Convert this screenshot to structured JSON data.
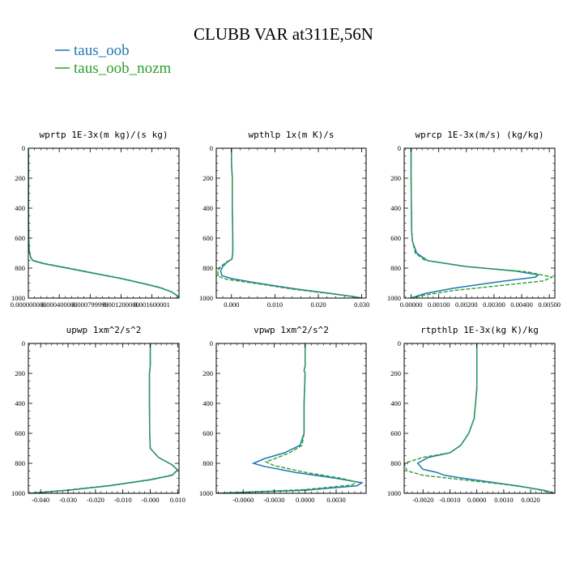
{
  "figure": {
    "title": "CLUBB VAR at311E,56N",
    "legend": [
      {
        "name": "taus_oob",
        "color": "#1f77b4",
        "dash": "solid"
      },
      {
        "name": "taus_oob_nozm",
        "color": "#2ca02c",
        "dash": "dashed"
      }
    ]
  },
  "chart_data": [
    {
      "type": "line",
      "title": "wprtp  1E-3x(m kg)/(s kg)",
      "x_ticks": [
        "0.000000000",
        "0.000400000",
        "0.000799999",
        "0.001200000",
        "0.001600001"
      ],
      "x_tick_values": [
        0,
        0.0004,
        0.0008,
        0.0012,
        0.0016
      ],
      "xlim": [
        0,
        0.00195
      ],
      "y_ticks": [
        "0",
        "200",
        "400",
        "600",
        "800",
        "1000"
      ],
      "ylim": [
        1000,
        0
      ],
      "series": [
        {
          "name": "taus_oob",
          "points": [
            [
              2e-06,
              0
            ],
            [
              2e-06,
              200
            ],
            [
              2e-06,
              400
            ],
            [
              3e-06,
              500
            ],
            [
              5e-06,
              600
            ],
            [
              1e-05,
              680
            ],
            [
              3e-05,
              730
            ],
            [
              6e-05,
              750
            ],
            [
              0.0002,
              770
            ],
            [
              0.0005,
              800
            ],
            [
              0.0009,
              840
            ],
            [
              0.0012,
              870
            ],
            [
              0.0015,
              905
            ],
            [
              0.0017,
              930
            ],
            [
              0.00185,
              958
            ],
            [
              0.00193,
              985
            ],
            [
              0.00195,
              1000
            ]
          ]
        },
        {
          "name": "taus_oob_nozm",
          "points": [
            [
              2e-06,
              0
            ],
            [
              2e-06,
              200
            ],
            [
              2e-06,
              400
            ],
            [
              3e-06,
              500
            ],
            [
              5e-06,
              600
            ],
            [
              1e-05,
              680
            ],
            [
              3e-05,
              728
            ],
            [
              6e-05,
              748
            ],
            [
              0.0002,
              768
            ],
            [
              0.0005,
              798
            ],
            [
              0.0009,
              838
            ],
            [
              0.0012,
              868
            ],
            [
              0.0015,
              903
            ],
            [
              0.0017,
              928
            ],
            [
              0.00185,
              957
            ],
            [
              0.00193,
              984
            ],
            [
              0.00195,
              1000
            ]
          ]
        }
      ]
    },
    {
      "type": "line",
      "title": "wpthlp  1x(m K)/s",
      "x_ticks": [
        "0.000",
        "0.010",
        "0.020",
        "0.030"
      ],
      "x_tick_values": [
        0,
        0.01,
        0.02,
        0.03
      ],
      "xlim": [
        -0.0035,
        0.031
      ],
      "y_ticks": [
        "0",
        "200",
        "400",
        "600",
        "800",
        "1000"
      ],
      "ylim": [
        1000,
        0
      ],
      "series": [
        {
          "name": "taus_oob",
          "points": [
            [
              0.0,
              0
            ],
            [
              0.0,
              100
            ],
            [
              0.0002,
              200
            ],
            [
              0.0002,
              400
            ],
            [
              0.0003,
              600
            ],
            [
              0.0003,
              700
            ],
            [
              0.0001,
              740
            ],
            [
              -0.001,
              760
            ],
            [
              -0.002,
              790
            ],
            [
              -0.0025,
              820
            ],
            [
              -0.0022,
              850
            ],
            [
              0.0,
              870
            ],
            [
              0.006,
              900
            ],
            [
              0.015,
              940
            ],
            [
              0.023,
              970
            ],
            [
              0.028,
              990
            ],
            [
              0.03,
              1000
            ]
          ]
        },
        {
          "name": "taus_oob_nozm",
          "points": [
            [
              0.0,
              0
            ],
            [
              0.0,
              100
            ],
            [
              0.0002,
              200
            ],
            [
              0.0002,
              400
            ],
            [
              0.0003,
              600
            ],
            [
              0.0003,
              700
            ],
            [
              0.0001,
              740
            ],
            [
              -0.0012,
              760
            ],
            [
              -0.0025,
              790
            ],
            [
              -0.0032,
              820
            ],
            [
              -0.003,
              855
            ],
            [
              -0.001,
              875
            ],
            [
              0.005,
              900
            ],
            [
              0.014,
              940
            ],
            [
              0.0225,
              970
            ],
            [
              0.028,
              990
            ],
            [
              0.03,
              1000
            ]
          ]
        }
      ]
    },
    {
      "type": "line",
      "title": "wprcp  1E-3x(m/s) (kg/kg)",
      "x_ticks": [
        "0.00000",
        "0.00100",
        "0.00200",
        "0.00300",
        "0.00400",
        "0.00500"
      ],
      "x_tick_values": [
        0,
        0.001,
        0.002,
        0.003,
        0.004,
        0.005
      ],
      "xlim": [
        -0.00025,
        0.0052
      ],
      "y_ticks": [
        "0",
        "200",
        "400",
        "600",
        "800",
        "1000"
      ],
      "ylim": [
        1000,
        0
      ],
      "series": [
        {
          "name": "taus_oob",
          "points": [
            [
              0.0,
              0
            ],
            [
              0.0,
              200
            ],
            [
              1e-05,
              400
            ],
            [
              2e-05,
              550
            ],
            [
              5e-05,
              620
            ],
            [
              0.0002,
              700
            ],
            [
              0.0006,
              750
            ],
            [
              0.002,
              790
            ],
            [
              0.0038,
              820
            ],
            [
              0.0046,
              845
            ],
            [
              0.0045,
              860
            ],
            [
              0.003,
              895
            ],
            [
              0.0015,
              935
            ],
            [
              0.0005,
              970
            ],
            [
              0.0,
              1000
            ]
          ]
        },
        {
          "name": "taus_oob_nozm",
          "points": [
            [
              0.0,
              0
            ],
            [
              0.0,
              200
            ],
            [
              1e-05,
              400
            ],
            [
              2e-05,
              550
            ],
            [
              5e-05,
              620
            ],
            [
              0.00015,
              700
            ],
            [
              0.0005,
              748
            ],
            [
              0.002,
              790
            ],
            [
              0.0042,
              825
            ],
            [
              0.0051,
              860
            ],
            [
              0.0048,
              885
            ],
            [
              0.0033,
              915
            ],
            [
              0.0015,
              950
            ],
            [
              0.0005,
              980
            ],
            [
              0.0,
              1000
            ]
          ]
        }
      ]
    },
    {
      "type": "line",
      "title": "upwp  1xm^2/s^2",
      "x_ticks": [
        "-0.040",
        "-0.030",
        "-0.020",
        "-0.010",
        "-0.000",
        "0.010"
      ],
      "x_tick_values": [
        -0.04,
        -0.03,
        -0.02,
        -0.01,
        0,
        0.01
      ],
      "xlim": [
        -0.0445,
        0.0105
      ],
      "y_ticks": [
        "0",
        "200",
        "400",
        "600",
        "800",
        "1000"
      ],
      "ylim": [
        1000,
        0
      ],
      "series": [
        {
          "name": "taus_oob",
          "points": [
            [
              0.0,
              0
            ],
            [
              0.0,
              150
            ],
            [
              -0.0003,
              200
            ],
            [
              -0.0003,
              400
            ],
            [
              -0.0002,
              600
            ],
            [
              0.0,
              700
            ],
            [
              0.003,
              760
            ],
            [
              0.008,
              810
            ],
            [
              0.01,
              845
            ],
            [
              0.008,
              880
            ],
            [
              0.0,
              910
            ],
            [
              -0.015,
              950
            ],
            [
              -0.03,
              980
            ],
            [
              -0.044,
              1000
            ]
          ]
        },
        {
          "name": "taus_oob_nozm",
          "points": [
            [
              0.0,
              0
            ],
            [
              0.0,
              150
            ],
            [
              -0.0003,
              200
            ],
            [
              -0.0003,
              400
            ],
            [
              -0.0002,
              600
            ],
            [
              0.0,
              700
            ],
            [
              0.003,
              760
            ],
            [
              0.008,
              810
            ],
            [
              0.01,
              843
            ],
            [
              0.008,
              878
            ],
            [
              0.0,
              908
            ],
            [
              -0.015,
              948
            ],
            [
              -0.03,
              978
            ],
            [
              -0.044,
              1000
            ]
          ]
        }
      ]
    },
    {
      "type": "line",
      "title": "vpwp  1xm^2/s^2",
      "x_ticks": [
        "-0.0060",
        "-0.0030",
        "0.0000",
        "0.0030"
      ],
      "x_tick_values": [
        -0.006,
        -0.003,
        0,
        0.003
      ],
      "xlim": [
        -0.0086,
        0.0059
      ],
      "y_ticks": [
        "0",
        "200",
        "400",
        "600",
        "800",
        "1000"
      ],
      "ylim": [
        1000,
        0
      ],
      "series": [
        {
          "name": "taus_oob",
          "points": [
            [
              0.0,
              0
            ],
            [
              0.0,
              150
            ],
            [
              -0.0001,
              180
            ],
            [
              0.0,
              200
            ],
            [
              -0.0001,
              400
            ],
            [
              -0.0001,
              600
            ],
            [
              -0.0005,
              680
            ],
            [
              -0.002,
              730
            ],
            [
              -0.004,
              770
            ],
            [
              -0.005,
              800
            ],
            [
              -0.004,
              820
            ],
            [
              -0.001,
              860
            ],
            [
              0.003,
              900
            ],
            [
              0.0055,
              930
            ],
            [
              0.005,
              950
            ],
            [
              0.0,
              980
            ],
            [
              -0.0086,
              1000
            ]
          ]
        },
        {
          "name": "taus_oob_nozm",
          "points": [
            [
              0.0,
              0
            ],
            [
              0.0,
              150
            ],
            [
              -0.0001,
              180
            ],
            [
              0.0,
              200
            ],
            [
              -0.0001,
              400
            ],
            [
              -0.0001,
              600
            ],
            [
              -0.0003,
              680
            ],
            [
              -0.0015,
              730
            ],
            [
              -0.003,
              770
            ],
            [
              -0.0038,
              790
            ],
            [
              -0.003,
              815
            ],
            [
              0.0,
              860
            ],
            [
              0.0035,
              900
            ],
            [
              0.005,
              925
            ],
            [
              0.0045,
              945
            ],
            [
              0.0,
              975
            ],
            [
              -0.0086,
              1000
            ]
          ]
        }
      ]
    },
    {
      "type": "line",
      "title": "rtpthlp  1E-3x(kg K)/kg",
      "x_ticks": [
        "-0.0020",
        "-0.0010",
        "0.0000",
        "0.0010",
        "0.0020"
      ],
      "x_tick_values": [
        -0.002,
        -0.001,
        0,
        0.001,
        0.002
      ],
      "xlim": [
        -0.0027,
        0.0029
      ],
      "y_ticks": [
        "0",
        "200",
        "400",
        "600",
        "800",
        "1000"
      ],
      "ylim": [
        1000,
        0
      ],
      "series": [
        {
          "name": "taus_oob",
          "points": [
            [
              0.0,
              0
            ],
            [
              0.0,
              300
            ],
            [
              -0.0001,
              500
            ],
            [
              -0.0003,
              600
            ],
            [
              -0.0006,
              680
            ],
            [
              -0.001,
              730
            ],
            [
              -0.0018,
              760
            ],
            [
              -0.0022,
              800
            ],
            [
              -0.002,
              840
            ],
            [
              -0.0015,
              860
            ],
            [
              -0.0012,
              880
            ],
            [
              -0.0005,
              900
            ],
            [
              0.0005,
              925
            ],
            [
              0.0015,
              950
            ],
            [
              0.0025,
              980
            ],
            [
              0.0029,
              1000
            ]
          ]
        },
        {
          "name": "taus_oob_nozm",
          "points": [
            [
              0.0,
              0
            ],
            [
              0.0,
              300
            ],
            [
              -0.0001,
              500
            ],
            [
              -0.0003,
              600
            ],
            [
              -0.0006,
              680
            ],
            [
              -0.001,
              730
            ],
            [
              -0.002,
              760
            ],
            [
              -0.0027,
              800
            ],
            [
              -0.0026,
              850
            ],
            [
              -0.002,
              880
            ],
            [
              -0.0005,
              910
            ],
            [
              0.001,
              940
            ],
            [
              0.002,
              965
            ],
            [
              0.0029,
              1000
            ]
          ]
        }
      ]
    }
  ]
}
